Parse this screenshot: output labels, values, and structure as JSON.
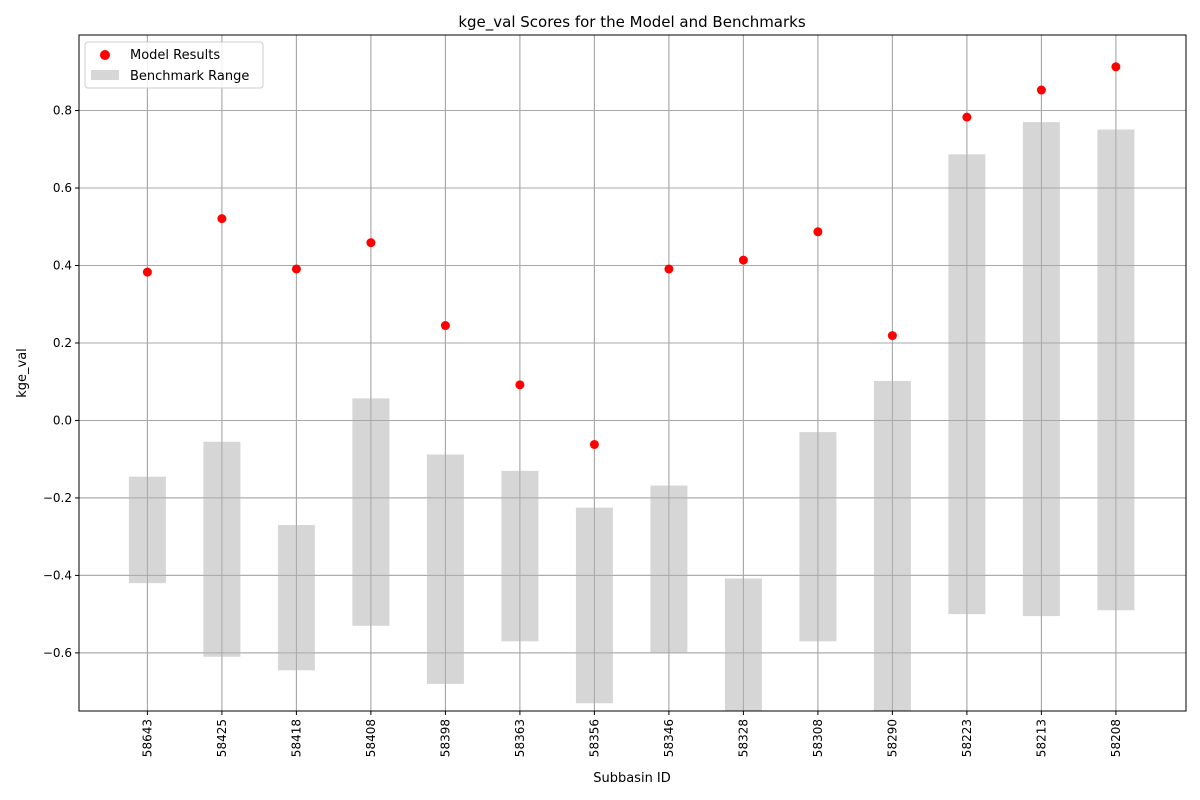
{
  "chart_data": {
    "type": "scatter",
    "title": "kge_val Scores for the Model and Benchmarks",
    "xlabel": "Subbasin ID",
    "ylabel": "kge_val",
    "ylim": [
      -0.75,
      0.995
    ],
    "yticks": [
      -0.6,
      -0.4,
      -0.2,
      0.0,
      0.2,
      0.4,
      0.6,
      0.8
    ],
    "ytick_labels": [
      "−0.6",
      "−0.4",
      "−0.2",
      "0.0",
      "0.2",
      "0.4",
      "0.6",
      "0.8"
    ],
    "grid": true,
    "legend_position": "top-left",
    "categories": [
      "58643",
      "58425",
      "58418",
      "58408",
      "58398",
      "58363",
      "58356",
      "58346",
      "58328",
      "58308",
      "58290",
      "58223",
      "58213",
      "58208"
    ],
    "series": [
      {
        "name": "Model Results",
        "kind": "scatter",
        "color": "#ff0000",
        "values": [
          0.383,
          0.521,
          0.391,
          0.459,
          0.245,
          0.092,
          -0.062,
          0.391,
          0.414,
          0.487,
          0.219,
          0.783,
          0.853,
          0.913
        ]
      },
      {
        "name": "Benchmark Range",
        "kind": "range-bar",
        "color": "#d6d6d6",
        "low": [
          -0.42,
          -0.61,
          -0.645,
          -0.53,
          -0.68,
          -0.57,
          -0.73,
          -0.6,
          -0.75,
          -0.57,
          -0.75,
          -0.5,
          -0.505,
          -0.49
        ],
        "high": [
          -0.145,
          -0.055,
          -0.27,
          0.057,
          -0.088,
          -0.13,
          -0.225,
          -0.168,
          -0.408,
          -0.03,
          0.102,
          0.687,
          0.77,
          0.751
        ]
      }
    ]
  }
}
